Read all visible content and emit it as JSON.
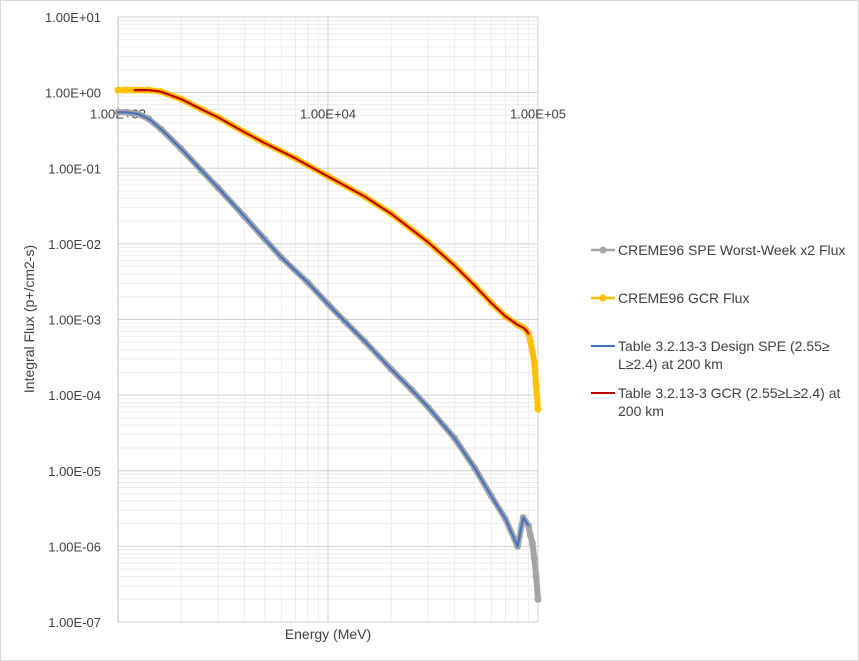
{
  "chart_data": {
    "type": "scatter",
    "xscale": "log",
    "yscale": "log",
    "xlim": [
      1000,
      100000
    ],
    "ylim": [
      1e-07,
      10
    ],
    "xlabel": "Energy (MeV)",
    "ylabel": "Integral Flux (p+/cm2-s)",
    "x_ticks": [
      "1.00E+03",
      "1.00E+04",
      "1.00E+05"
    ],
    "x_tick_values": [
      1000,
      10000,
      100000
    ],
    "y_ticks": [
      "1.00E+01",
      "1.00E+00",
      "1.00E-01",
      "1.00E-02",
      "1.00E-03",
      "1.00E-04",
      "1.00E-05",
      "1.00E-06",
      "1.00E-07"
    ],
    "y_tick_values": [
      10,
      1,
      0.1,
      0.01,
      0.001,
      0.0001,
      1e-05,
      1e-06,
      1e-07
    ],
    "grid": true,
    "legend_position": "right",
    "series": [
      {
        "name": "CREME96 SPE Worst-Week x2 Flux",
        "kind": "scatter-line",
        "color": "#a5a5a5",
        "x": [
          1000,
          1100,
          1250,
          1400,
          1600,
          2000,
          2500,
          3000,
          4000,
          5000,
          6000,
          8000,
          10000,
          12000,
          15000,
          20000,
          25000,
          30000,
          40000,
          50000,
          60000,
          70000,
          80000,
          85000,
          90000,
          92000,
          94000,
          96000,
          98000,
          100000
        ],
        "y": [
          0.55,
          0.55,
          0.52,
          0.45,
          0.33,
          0.18,
          0.093,
          0.055,
          0.023,
          0.0115,
          0.0066,
          0.0031,
          0.0016,
          0.00095,
          0.00051,
          0.00022,
          0.000118,
          6.9e-05,
          2.7e-05,
          1.08e-05,
          4.6e-06,
          2.3e-06,
          1e-06,
          2.4e-06,
          1.9e-06,
          1.4e-06,
          1.1e-06,
          7e-07,
          4e-07,
          2e-07
        ]
      },
      {
        "name": "CREME96 GCR Flux",
        "kind": "scatter-line",
        "color": "#ffc000",
        "x": [
          1000,
          1100,
          1200,
          1400,
          1600,
          2000,
          2500,
          3000,
          4000,
          5000,
          7000,
          10000,
          15000,
          20000,
          30000,
          40000,
          50000,
          60000,
          70000,
          80000,
          85000,
          88000,
          90000,
          92000,
          94000,
          96000,
          98000,
          100000
        ],
        "y": [
          1.08,
          1.08,
          1.08,
          1.08,
          1.03,
          0.82,
          0.6,
          0.47,
          0.3,
          0.215,
          0.135,
          0.078,
          0.042,
          0.025,
          0.0105,
          0.0052,
          0.0028,
          0.00165,
          0.0011,
          0.00085,
          0.00078,
          0.00072,
          0.00065,
          0.00052,
          0.00038,
          0.00027,
          0.00013,
          6.5e-05
        ]
      },
      {
        "name": "Table 3.2.13-3 Design SPE (2.55≥ L≥2.4) at 200 km",
        "kind": "line",
        "color": "#4472c4",
        "x": [
          1000,
          1100,
          1250,
          1400,
          1600,
          2000,
          2500,
          3000,
          4000,
          5000,
          6000,
          8000,
          10000,
          12000,
          15000,
          20000,
          25000,
          30000,
          40000,
          50000,
          60000,
          70000,
          80000,
          85000,
          90000
        ],
        "y": [
          0.55,
          0.55,
          0.52,
          0.45,
          0.33,
          0.18,
          0.093,
          0.055,
          0.023,
          0.0115,
          0.0066,
          0.0031,
          0.0016,
          0.00095,
          0.00051,
          0.00022,
          0.000118,
          6.9e-05,
          2.7e-05,
          1.08e-05,
          4.6e-06,
          2.3e-06,
          1e-06,
          2.4e-06,
          1.9e-06
        ]
      },
      {
        "name": "Table 3.2.13-3  GCR (2.55≥L≥2.4) at 200 km",
        "kind": "line",
        "color": "#c00000",
        "x": [
          1200,
          1400,
          1600,
          2000,
          2500,
          3000,
          4000,
          5000,
          7000,
          10000,
          15000,
          20000,
          30000,
          40000,
          50000,
          60000,
          70000,
          80000,
          85000,
          88000,
          90000
        ],
        "y": [
          1.08,
          1.08,
          1.03,
          0.82,
          0.6,
          0.47,
          0.3,
          0.215,
          0.135,
          0.078,
          0.042,
          0.025,
          0.0105,
          0.0052,
          0.0028,
          0.00165,
          0.0011,
          0.00085,
          0.00078,
          0.00072,
          0.00065
        ]
      }
    ],
    "legend": [
      {
        "lines": [
          "CREME96 SPE Worst-Week x2 Flux"
        ],
        "color": "#a5a5a5",
        "marker": true
      },
      {
        "lines": [
          "CREME96 GCR Flux"
        ],
        "color": "#ffc000",
        "marker": true
      },
      {
        "lines": [
          "Table 3.2.13-3 Design SPE (2.55≥",
          "L≥2.4) at 200 km"
        ],
        "color": "#4472c4",
        "marker": false
      },
      {
        "lines": [
          "Table 3.2.13-3  GCR (2.55≥L≥2.4) at",
          "200 km"
        ],
        "color": "#c00000",
        "marker": false
      }
    ]
  }
}
